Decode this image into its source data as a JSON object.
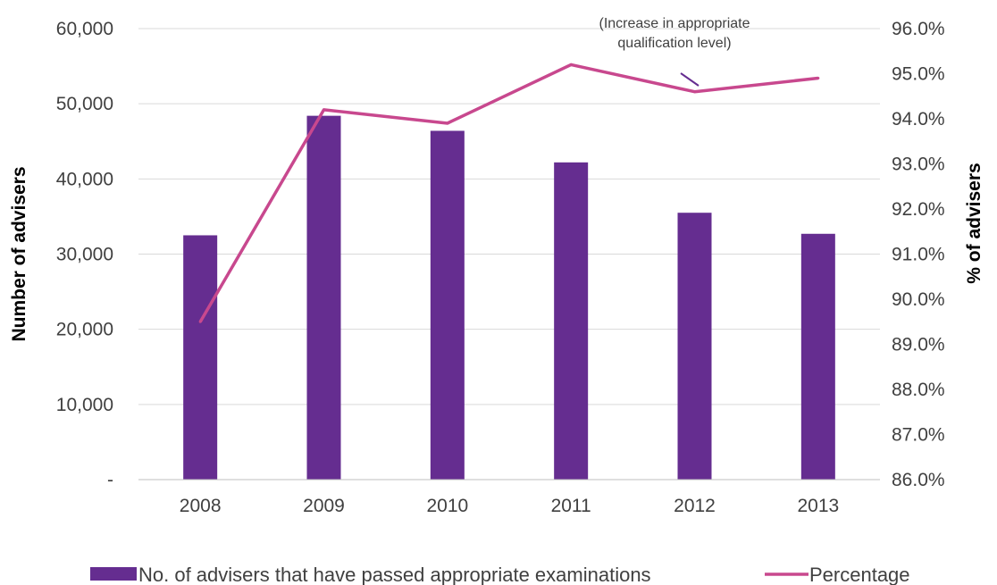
{
  "chart_data": {
    "type": "bar",
    "categories": [
      "2008",
      "2009",
      "2010",
      "2011",
      "2012",
      "2013"
    ],
    "series": [
      {
        "name": "No. of advisers that have passed appropriate examinations",
        "type": "bar",
        "axis": "left",
        "color": "#652D90",
        "values": [
          32500,
          48400,
          46400,
          42200,
          35500,
          32700
        ]
      },
      {
        "name": "Percentage",
        "type": "line",
        "axis": "right",
        "color": "#C8488E",
        "values": [
          89.5,
          94.2,
          93.9,
          95.2,
          94.6,
          94.9
        ]
      }
    ],
    "ylabel": "Number of advisers",
    "y2label": "% of advisers",
    "ylim": [
      0,
      60000
    ],
    "y2lim": [
      86.0,
      96.0
    ],
    "y_ticks": [
      {
        "value": 0,
        "label": "-"
      },
      {
        "value": 10000,
        "label": "10,000"
      },
      {
        "value": 20000,
        "label": "20,000"
      },
      {
        "value": 30000,
        "label": "30,000"
      },
      {
        "value": 40000,
        "label": "40,000"
      },
      {
        "value": 50000,
        "label": "50,000"
      },
      {
        "value": 60000,
        "label": "60,000"
      }
    ],
    "y2_ticks": [
      {
        "value": 86,
        "label": "86.0%"
      },
      {
        "value": 87,
        "label": "87.0%"
      },
      {
        "value": 88,
        "label": "88.0%"
      },
      {
        "value": 89,
        "label": "89.0%"
      },
      {
        "value": 90,
        "label": "90.0%"
      },
      {
        "value": 91,
        "label": "91.0%"
      },
      {
        "value": 92,
        "label": "92.0%"
      },
      {
        "value": 93,
        "label": "93.0%"
      },
      {
        "value": 94,
        "label": "94.0%"
      },
      {
        "value": 95,
        "label": "95.0%"
      },
      {
        "value": 96,
        "label": "96.0%"
      }
    ],
    "grid": true,
    "legend_position": "bottom",
    "annotation": {
      "lines": [
        "(Increase in appropriate",
        "qualification level)"
      ],
      "color": "#652D90",
      "target_category": "2012"
    }
  }
}
